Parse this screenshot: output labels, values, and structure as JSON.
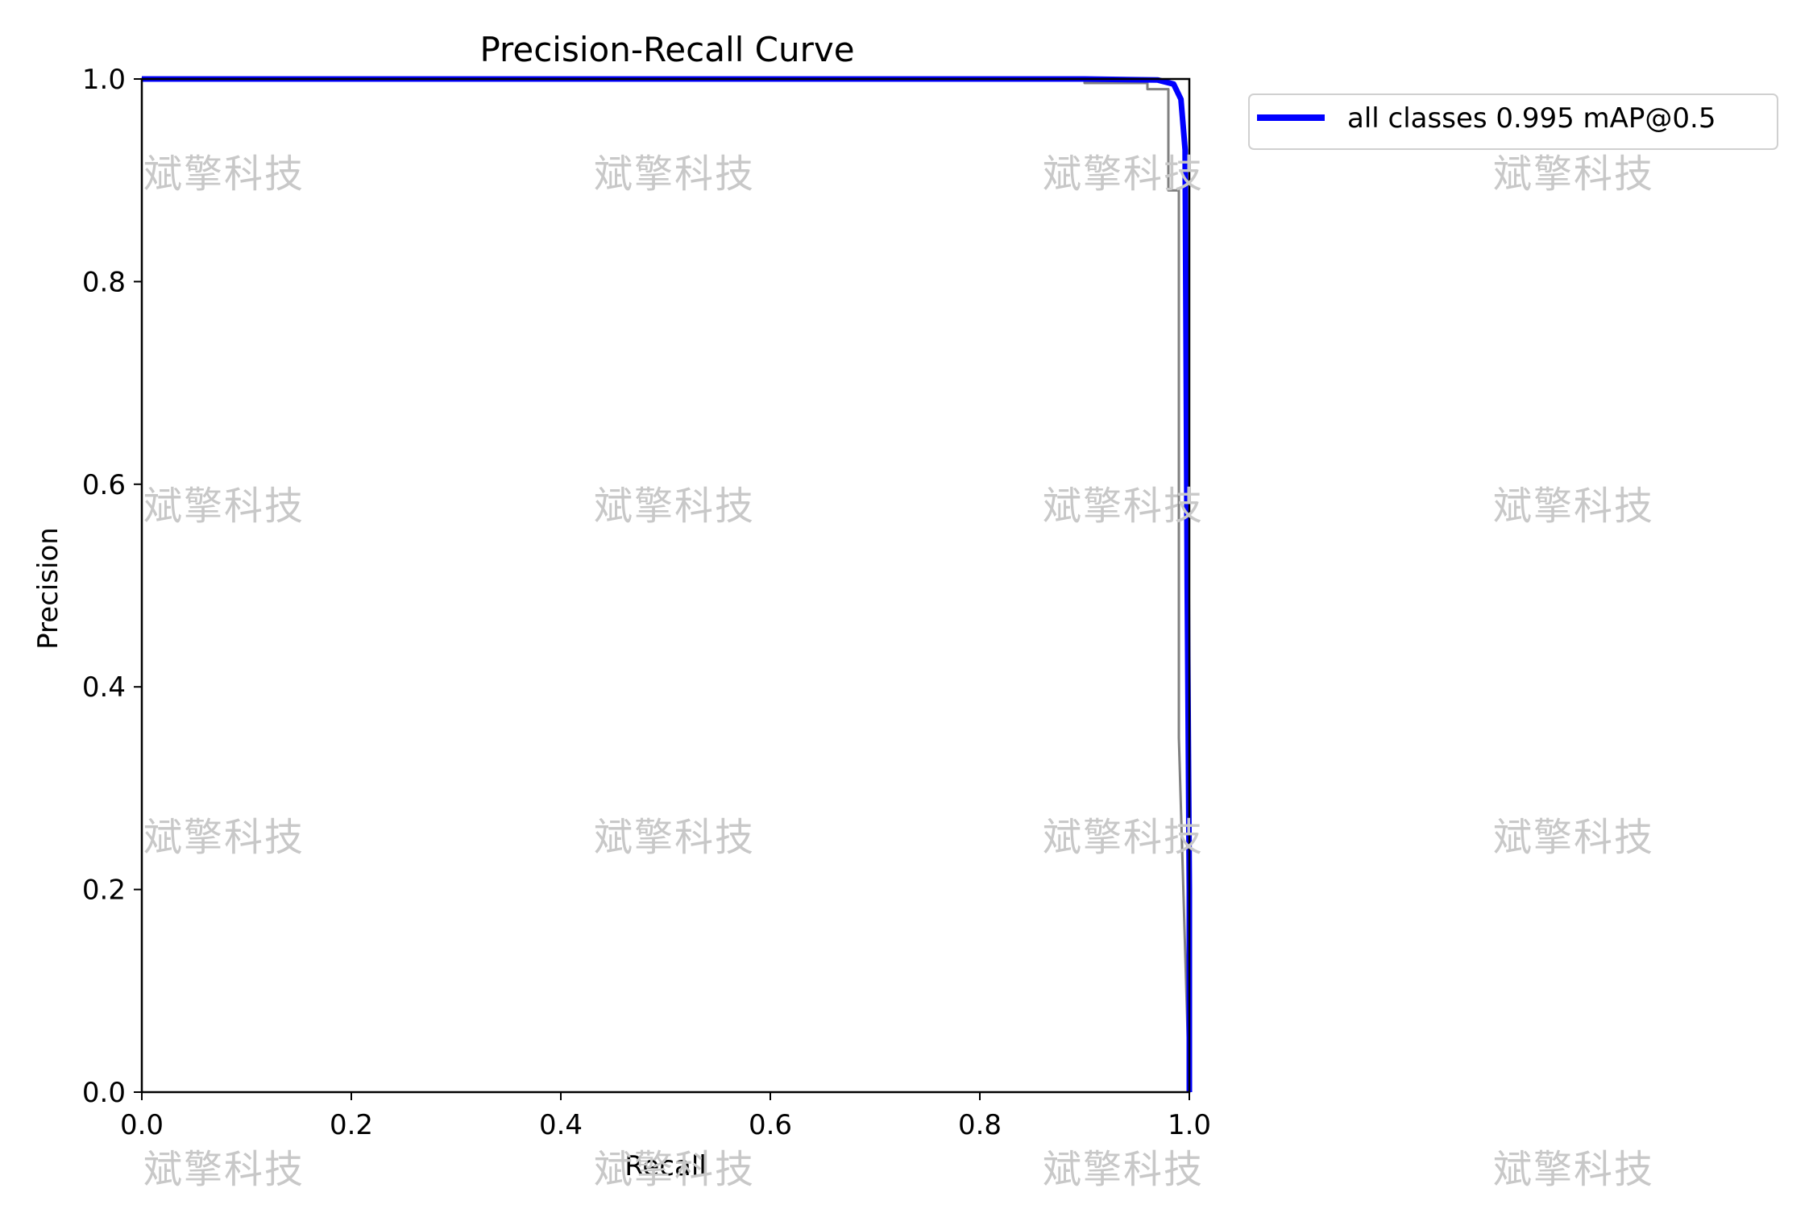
{
  "chart_data": {
    "type": "line",
    "title": "Precision-Recall Curve",
    "xlabel": "Recall",
    "ylabel": "Precision",
    "xlim": [
      0,
      1
    ],
    "ylim": [
      0,
      1
    ],
    "xticks": [
      "0.0",
      "0.2",
      "0.4",
      "0.6",
      "0.8",
      "1.0"
    ],
    "yticks": [
      "0.0",
      "0.2",
      "0.4",
      "0.6",
      "0.8",
      "1.0"
    ],
    "grid": false,
    "legend": "outside-upper-right",
    "series": [
      {
        "name": "",
        "color": "#808080",
        "x": [
          0.0,
          0.9,
          0.9,
          0.96,
          0.96,
          0.98,
          0.98,
          0.99,
          0.99,
          1.0
        ],
        "y": [
          1.0,
          1.0,
          0.996,
          0.996,
          0.99,
          0.99,
          0.89,
          0.89,
          0.35,
          0.0
        ]
      },
      {
        "name": "all classes 0.995 mAP@0.5",
        "color": "#0000ff",
        "x": [
          0.0,
          0.9,
          0.97,
          0.985,
          0.992,
          0.996,
          0.998,
          1.0,
          1.0
        ],
        "y": [
          1.0,
          1.0,
          0.999,
          0.995,
          0.98,
          0.93,
          0.5,
          0.2,
          0.0
        ]
      }
    ]
  },
  "watermark": {
    "text": "斌擎科技",
    "color": "#c8c8c8"
  }
}
